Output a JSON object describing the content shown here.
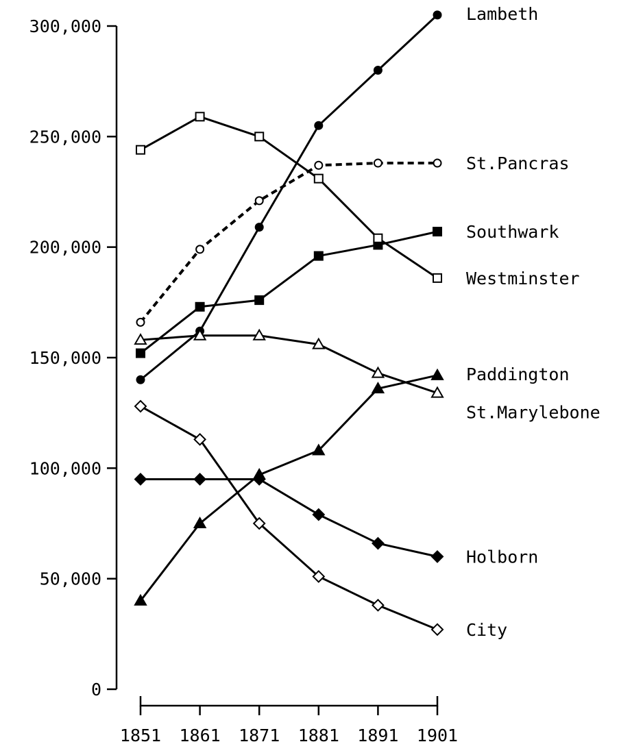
{
  "chart_data": {
    "type": "line",
    "title": "",
    "xlabel": "",
    "ylabel": "",
    "x": [
      1851,
      1861,
      1871,
      1881,
      1891,
      1901
    ],
    "x_tick_labels": [
      "1851",
      "1861",
      "1871",
      "1881",
      "1891",
      "1901"
    ],
    "y_ticks": [
      0,
      50000,
      100000,
      150000,
      200000,
      250000,
      300000
    ],
    "y_tick_labels": [
      "0",
      "50,000",
      "100,000",
      "150,000",
      "200,000",
      "250,000",
      "300,000"
    ],
    "ylim": [
      0,
      300000
    ],
    "grid": false,
    "legend": "direct labels at right end of each line",
    "series": [
      {
        "name": "Lambeth",
        "marker": "filled-circle",
        "dashed": false,
        "values": [
          140000,
          162000,
          209000,
          255000,
          280000,
          305000
        ]
      },
      {
        "name": "St.Pancras",
        "marker": "open-circle",
        "dashed": true,
        "values": [
          166000,
          199000,
          221000,
          237000,
          238000,
          238000
        ]
      },
      {
        "name": "Southwark",
        "marker": "filled-square",
        "dashed": false,
        "values": [
          152000,
          173000,
          176000,
          196000,
          201000,
          207000
        ]
      },
      {
        "name": "Westminster",
        "marker": "open-square",
        "dashed": false,
        "values": [
          244000,
          259000,
          250000,
          231000,
          204000,
          186000
        ]
      },
      {
        "name": "Paddington",
        "marker": "filled-triangle",
        "dashed": false,
        "values": [
          40000,
          75000,
          97000,
          108000,
          136000,
          142000
        ]
      },
      {
        "name": "St.Marylebone",
        "marker": "open-triangle",
        "dashed": false,
        "values": [
          158000,
          160000,
          160000,
          156000,
          143000,
          134000
        ]
      },
      {
        "name": "Holborn",
        "marker": "filled-diamond",
        "dashed": false,
        "values": [
          95000,
          95000,
          95000,
          79000,
          66000,
          60000
        ]
      },
      {
        "name": "City",
        "marker": "open-diamond",
        "dashed": false,
        "values": [
          128000,
          113000,
          75000,
          51000,
          38000,
          27000
        ]
      }
    ]
  }
}
